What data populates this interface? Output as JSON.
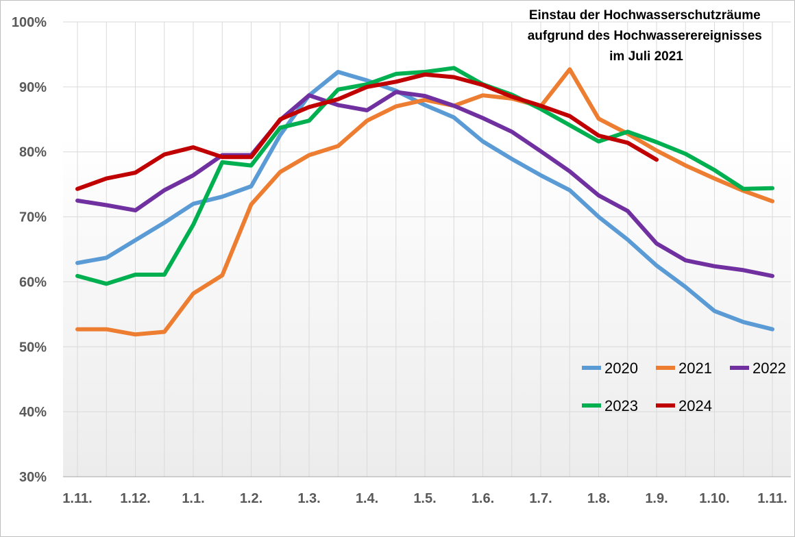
{
  "chart_data": {
    "type": "line",
    "title_lines": [
      "Einstau der Hochwasserschutzräume",
      "aufgrund des Hochwasserereignisses",
      "im Juli 2021"
    ],
    "xlabel": "",
    "ylabel": "",
    "ylim": [
      30,
      100
    ],
    "y_ticks": [
      "30%",
      "40%",
      "50%",
      "60%",
      "70%",
      "80%",
      "90%",
      "100%"
    ],
    "x_tick_labels": [
      "1.11.",
      "1.12.",
      "1.1.",
      "1.2.",
      "1.3.",
      "1.4.",
      "1.5.",
      "1.6.",
      "1.7.",
      "1.8.",
      "1.9.",
      "1.10.",
      "1.11."
    ],
    "x_points": [
      "1.11.",
      "15.11.",
      "1.12.",
      "15.12.",
      "1.1.",
      "15.1.",
      "1.2.",
      "15.2.",
      "1.3.",
      "15.3.",
      "1.4.",
      "15.4.",
      "1.5.",
      "15.5.",
      "1.6.",
      "15.6.",
      "1.7.",
      "15.7.",
      "1.8.",
      "15.8.",
      "1.9.",
      "15.9.",
      "1.10.",
      "15.10.",
      "1.11."
    ],
    "grid": true,
    "legend_position": "bottom-right",
    "series": [
      {
        "name": "2020",
        "color": "#5b9bd5",
        "values": [
          62.9,
          63.7,
          66.4,
          69.1,
          72.0,
          73.1,
          74.7,
          82.6,
          88.7,
          92.3,
          91.0,
          89.4,
          87.2,
          85.3,
          81.6,
          78.9,
          76.4,
          74.1,
          70.0,
          66.5,
          62.5,
          59.2,
          55.5,
          53.8,
          52.7
        ]
      },
      {
        "name": "2021",
        "color": "#ed7d31",
        "values": [
          52.7,
          52.7,
          51.9,
          52.3,
          58.2,
          61.0,
          71.9,
          76.9,
          79.5,
          80.9,
          84.8,
          87.0,
          88.0,
          87.1,
          88.7,
          88.2,
          87.0,
          92.7,
          85.1,
          82.8,
          80.2,
          77.9,
          75.9,
          74.0,
          72.4
        ]
      },
      {
        "name": "2022",
        "color": "#7030a0",
        "values": [
          72.5,
          71.8,
          71.0,
          74.1,
          76.4,
          79.5,
          79.5,
          84.9,
          88.7,
          87.2,
          86.4,
          89.2,
          88.6,
          87.1,
          85.2,
          83.1,
          80.1,
          77.0,
          73.3,
          70.9,
          65.9,
          63.3,
          62.4,
          61.8,
          60.9
        ]
      },
      {
        "name": "2023",
        "color": "#00b050",
        "values": [
          60.9,
          59.7,
          61.1,
          61.1,
          68.8,
          78.4,
          77.9,
          83.7,
          84.8,
          89.6,
          90.4,
          92.0,
          92.3,
          92.9,
          90.4,
          88.8,
          86.6,
          84.1,
          81.6,
          83.1,
          81.5,
          79.7,
          77.2,
          74.3,
          74.4
        ]
      },
      {
        "name": "2024",
        "color": "#c00000",
        "values": [
          74.3,
          75.9,
          76.8,
          79.6,
          80.7,
          79.2,
          79.2,
          85.0,
          86.9,
          88.1,
          90.0,
          90.8,
          91.9,
          91.5,
          90.3,
          88.5,
          87.1,
          85.5,
          82.5,
          81.4,
          78.8
        ]
      }
    ]
  }
}
